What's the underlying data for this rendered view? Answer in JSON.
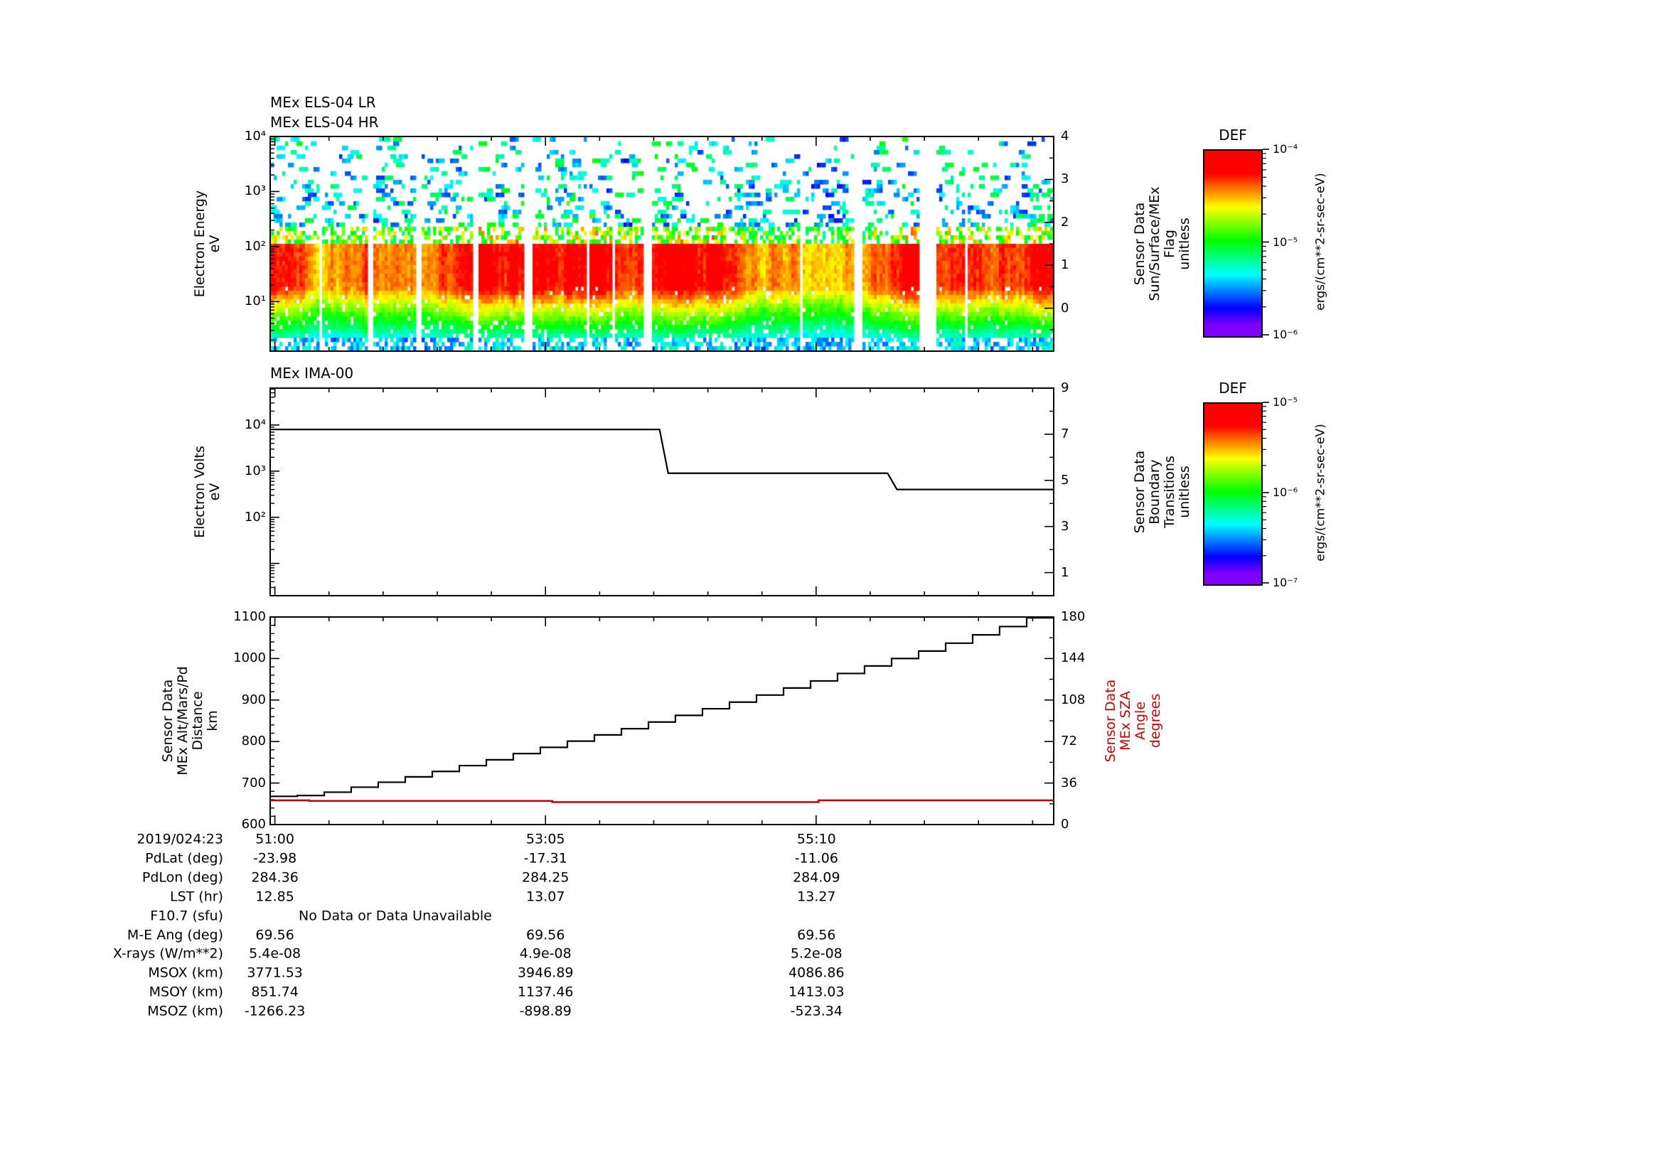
{
  "colors": {
    "black": "#000000",
    "red": "#cc0000",
    "background": "#ffffff"
  },
  "els_panel": {
    "titles": [
      "MEx ELS-04 LR",
      "MEx ELS-04 HR"
    ],
    "ylabel": [
      "Electron Energy",
      "eV"
    ],
    "yticks": [
      "10⁴",
      "10³",
      "10²",
      "10¹"
    ],
    "right_label": [
      "Sensor Data",
      "Sun/Surface/MEx",
      "Flag",
      "unitless"
    ],
    "right_ticks": [
      "4",
      "3",
      "2",
      "1",
      "0"
    ]
  },
  "ima_panel": {
    "title": "MEx IMA-00",
    "ylabel": [
      "Electron Volts",
      "eV"
    ],
    "yticks": [
      "10⁴",
      "10³",
      "10²"
    ],
    "right_label": [
      "Sensor Data",
      "Boundary",
      "Transitions",
      "unitless"
    ],
    "right_ticks": [
      "9",
      "7",
      "5",
      "3",
      "1"
    ]
  },
  "alt_panel": {
    "ylabel": [
      "Sensor Data",
      "MEx Alt/Mars/Pd",
      "Distance",
      "km"
    ],
    "yticks": [
      "1100",
      "1000",
      "900",
      "800",
      "700",
      "600"
    ],
    "right_label": [
      "Sensor Data",
      "MEx SZA",
      "Angle",
      "degrees"
    ],
    "right_ticks": [
      "180",
      "144",
      "108",
      "72",
      "36",
      "0"
    ]
  },
  "colorbars": [
    {
      "title": "DEF",
      "units": "ergs/(cm**2-sr-sec-eV)",
      "ticks": [
        "10⁻⁴",
        "10⁻⁵",
        "10⁻⁶"
      ]
    },
    {
      "title": "DEF",
      "units": "ergs/(cm**2-sr-sec-eV)",
      "ticks": [
        "10⁻⁵",
        "10⁻⁶",
        "10⁻⁷"
      ]
    }
  ],
  "xaxis": {
    "date": "2019/024:23",
    "ticks": [
      "51:00",
      "53:05",
      "55:10"
    ],
    "fracs": [
      0.006,
      0.3514,
      0.6972
    ]
  },
  "table": {
    "rows": [
      {
        "label": "PdLat (deg)",
        "values": [
          "-23.98",
          "-17.31",
          "-11.06"
        ]
      },
      {
        "label": "PdLon (deg)",
        "values": [
          "284.36",
          "284.25",
          "284.09"
        ]
      },
      {
        "label": "LST (hr)",
        "values": [
          "12.85",
          "13.07",
          "13.27"
        ]
      },
      {
        "label": "F10.7 (sfu)",
        "values": [
          "No Data or Data Unavailable"
        ],
        "span": true
      },
      {
        "label": "M-E Ang (deg)",
        "values": [
          "69.56",
          "69.56",
          "69.56"
        ]
      },
      {
        "label": "X-rays (W/m**2)",
        "values": [
          "5.4e-08",
          "4.9e-08",
          "5.2e-08"
        ]
      },
      {
        "label": "MSOX (km)",
        "values": [
          "3771.53",
          "3946.89",
          "4086.86"
        ]
      },
      {
        "label": "MSOY (km)",
        "values": [
          "851.74",
          "1137.46",
          "1413.03"
        ]
      },
      {
        "label": "MSOZ (km)",
        "values": [
          "-1266.23",
          "-898.89",
          "-523.34"
        ]
      }
    ]
  },
  "chart_data": [
    {
      "type": "heatmap",
      "title": "MEx ELS-04 LR / MEx ELS-04 HR electron energy spectrogram",
      "ylabel": "Electron Energy eV",
      "yscale": "log",
      "ylim": [
        1.3,
        10000
      ],
      "xticks": [
        "51:00",
        "53:05",
        "55:10"
      ],
      "x_start_label": "2019/024:23",
      "right_axis": {
        "label": "Sensor Data Sun/Surface/MEx Flag unitless",
        "ticks": [
          0,
          1,
          2,
          3,
          4
        ],
        "range": [
          -1,
          4
        ]
      },
      "colorbar": {
        "title": "DEF",
        "units": "ergs/(cm**2-sr-sec-eV)",
        "range": [
          "1e-6",
          "1e-4"
        ]
      },
      "description": "Intense red flux band 20-100 eV, orange-yellow 9-20 eV, green 4-9 eV, cyan-blue 2-4 eV, sparse blue/green dashes 200-10000 eV, frequent narrow white data-gap columns",
      "render": {
        "seed": 20190423,
        "rows": 50,
        "cols": 275,
        "log_range": [
          0.1,
          4.0
        ],
        "gap_prob": 0.055,
        "bands": [
          {
            "lmin": 2.35,
            "lmax": 4.0,
            "mode": "specks"
          },
          {
            "lmin": 2.05,
            "lmax": 2.35,
            "mode": "fringe",
            "prob": 0.5,
            "v": [
              0.45,
              0.85
            ]
          },
          {
            "lmin": 1.25,
            "lmax": 2.05,
            "mode": "solid",
            "v": [
              0.97,
              0.97
            ]
          },
          {
            "lmin": 0.95,
            "lmax": 1.25,
            "mode": "grad",
            "v": [
              0.78,
              0.97
            ]
          },
          {
            "lmin": 0.6,
            "lmax": 0.95,
            "mode": "grad",
            "v": [
              0.56,
              0.78
            ]
          },
          {
            "lmin": 0.3,
            "lmax": 0.6,
            "mode": "grad",
            "v": [
              0.36,
              0.56
            ]
          },
          {
            "lmin": 0.1,
            "lmax": 0.3,
            "mode": "sparse",
            "prob": 0.6,
            "v": [
              0.2,
              0.4
            ]
          }
        ],
        "speck": {
          "p0": 0.2,
          "slope": 0.085,
          "pmin": 0.012,
          "v": [
            0.15,
            0.55
          ],
          "dash_max": 3
        }
      }
    },
    {
      "type": "line",
      "title": "MEx IMA-00",
      "ylabel": "Electron Volts eV",
      "yscale": "log",
      "ylim": [
        2,
        63000
      ],
      "right_axis": {
        "label": "Sensor Data Boundary Transitions unitless",
        "ticks": [
          1,
          3,
          5,
          7,
          9
        ],
        "range": [
          0,
          9
        ]
      },
      "series": [
        {
          "name": "ima-scan-level",
          "color": "#000000",
          "points": [
            [
              0.0,
              8000
            ],
            [
              0.497,
              8000
            ],
            [
              0.508,
              900
            ],
            [
              0.788,
              900
            ],
            [
              0.8,
              400
            ],
            [
              1.0,
              400
            ]
          ]
        }
      ]
    },
    {
      "type": "line",
      "ylabel": "Sensor Data MEx Alt/Mars/Pd Distance km",
      "ylim": [
        600,
        1100
      ],
      "right_axis": {
        "label": "Sensor Data MEx SZA Angle degrees",
        "ticks": [
          0,
          36,
          72,
          108,
          144,
          180
        ],
        "range": [
          0,
          180
        ],
        "color": "#cc0000"
      },
      "series": [
        {
          "name": "mex-altitude-km",
          "color": "#000000",
          "step": true,
          "x": [
            0,
            0.0345,
            0.069,
            0.1034,
            0.1379,
            0.1724,
            0.2069,
            0.2414,
            0.2759,
            0.3103,
            0.3448,
            0.3793,
            0.4138,
            0.4483,
            0.4828,
            0.5172,
            0.5517,
            0.5862,
            0.6207,
            0.6552,
            0.6897,
            0.7241,
            0.7586,
            0.7931,
            0.8276,
            0.8621,
            0.8966,
            0.931,
            0.9655,
            1.0
          ],
          "y": [
            668,
            670,
            678,
            690,
            702,
            715,
            728,
            742,
            756,
            771,
            786,
            801,
            816,
            831,
            847,
            863,
            879,
            895,
            912,
            929,
            946,
            964,
            982,
            1000,
            1018,
            1037,
            1057,
            1077,
            1098,
            1100
          ]
        },
        {
          "name": "mex-sza-deg",
          "color": "#cc0000",
          "step": true,
          "axis": "right",
          "x": [
            0,
            0.05,
            0.35,
            0.36,
            0.68,
            0.7,
            1.0
          ],
          "y": [
            21,
            20.5,
            20.5,
            19.5,
            19.5,
            21,
            21
          ]
        }
      ]
    }
  ]
}
